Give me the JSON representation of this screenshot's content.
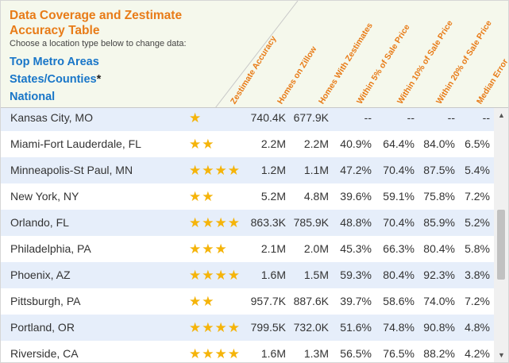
{
  "title": "Data Coverage and Zestimate Accuracy Table",
  "subtitle": "Choose a location type below to change data:",
  "location_types": [
    "Top Metro Areas",
    "States/Counties",
    "National"
  ],
  "location_asterisk": "*",
  "columns": [
    "Zestimate Accuracy",
    "Homes on Zillow",
    "Homes With Zestimates",
    "Within 5% of Sale Price",
    "Within 10% of Sale Price",
    "Within 20% of Sale Price",
    "Median Error"
  ],
  "rows": [
    {
      "name": "Kansas City, MO",
      "stars": 1,
      "homes": "740.4K",
      "zestimates": "677.9K",
      "w5": "--",
      "w10": "--",
      "w20": "--",
      "median": "--"
    },
    {
      "name": "Miami-Fort Lauderdale, FL",
      "stars": 2,
      "homes": "2.2M",
      "zestimates": "2.2M",
      "w5": "40.9%",
      "w10": "64.4%",
      "w20": "84.0%",
      "median": "6.5%"
    },
    {
      "name": "Minneapolis-St Paul, MN",
      "stars": 4,
      "homes": "1.2M",
      "zestimates": "1.1M",
      "w5": "47.2%",
      "w10": "70.4%",
      "w20": "87.5%",
      "median": "5.4%"
    },
    {
      "name": "New York, NY",
      "stars": 2,
      "homes": "5.2M",
      "zestimates": "4.8M",
      "w5": "39.6%",
      "w10": "59.1%",
      "w20": "75.8%",
      "median": "7.2%"
    },
    {
      "name": "Orlando, FL",
      "stars": 4,
      "homes": "863.3K",
      "zestimates": "785.9K",
      "w5": "48.8%",
      "w10": "70.4%",
      "w20": "85.9%",
      "median": "5.2%"
    },
    {
      "name": "Philadelphia, PA",
      "stars": 3,
      "homes": "2.1M",
      "zestimates": "2.0M",
      "w5": "45.3%",
      "w10": "66.3%",
      "w20": "80.4%",
      "median": "5.8%"
    },
    {
      "name": "Phoenix, AZ",
      "stars": 4,
      "homes": "1.6M",
      "zestimates": "1.5M",
      "w5": "59.3%",
      "w10": "80.4%",
      "w20": "92.3%",
      "median": "3.8%"
    },
    {
      "name": "Pittsburgh, PA",
      "stars": 2,
      "homes": "957.7K",
      "zestimates": "887.6K",
      "w5": "39.7%",
      "w10": "58.6%",
      "w20": "74.0%",
      "median": "7.2%"
    },
    {
      "name": "Portland, OR",
      "stars": 4,
      "homes": "799.5K",
      "zestimates": "732.0K",
      "w5": "51.6%",
      "w10": "74.8%",
      "w20": "90.8%",
      "median": "4.8%"
    },
    {
      "name": "Riverside, CA",
      "stars": 4,
      "homes": "1.6M",
      "zestimates": "1.3M",
      "w5": "56.5%",
      "w10": "76.5%",
      "w20": "88.2%",
      "median": "4.2%"
    }
  ],
  "colors": {
    "accent": "#e87b17",
    "link": "#1976c8",
    "row_alt": "#e6eefa",
    "header_bg": "#f5f8ec",
    "star": "#f5b40a"
  },
  "icons": {
    "star": "star-icon",
    "scroll_up": "arrow-up-icon",
    "scroll_down": "arrow-down-icon"
  }
}
